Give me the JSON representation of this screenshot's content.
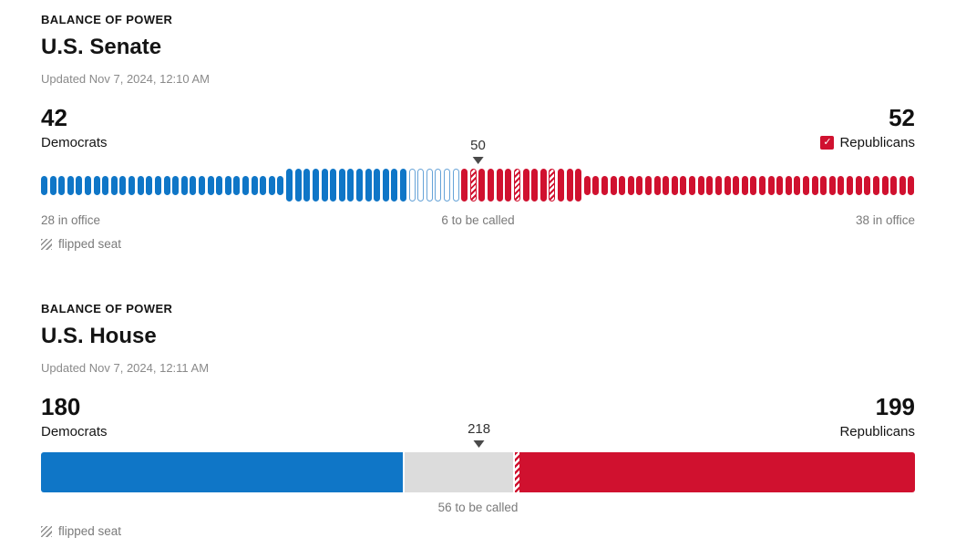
{
  "colors": {
    "democrat_blue": "#0f76c7",
    "republican_red": "#d0112f",
    "uncalled_gray": "#dcdcdc",
    "note_text_gray": "#7a7a7a",
    "marker_gray": "#4a4a4a"
  },
  "senate": {
    "kicker": "BALANCE OF POWER",
    "title": "U.S. Senate",
    "updated": "Updated Nov 7, 2024, 12:10 AM",
    "democrats": {
      "total": "42",
      "label": "Democrats"
    },
    "republicans": {
      "total": "52",
      "label": "Republicans",
      "winner": true,
      "check_icon": "✓"
    },
    "majority_label": "50",
    "notes": {
      "left": "28 in office",
      "center": "6 to be called",
      "right": "38 in office"
    },
    "legend": "flipped seat"
  },
  "house": {
    "kicker": "BALANCE OF POWER",
    "title": "U.S. House",
    "updated": "Updated Nov 7, 2024, 12:11 AM",
    "democrats": {
      "total": "180",
      "label": "Democrats"
    },
    "republicans": {
      "total": "199",
      "label": "Republicans",
      "winner": false
    },
    "majority_label": "218",
    "notes": {
      "center": "56 to be called"
    },
    "legend": "flipped seat"
  },
  "chart_data": [
    {
      "type": "seat-chart",
      "title": "U.S. Senate balance of power",
      "total_seats": 100,
      "majority": 50,
      "democrats": 42,
      "republicans": 52,
      "uncalled": 6,
      "dem_in_office": 28,
      "rep_in_office": 38,
      "dem_elected": 14,
      "rep_elected": 14,
      "groups": [
        {
          "class": "dem-office",
          "count": 28
        },
        {
          "class": "dem-elected",
          "count": 14
        },
        {
          "class": "uncalled",
          "count": 6
        },
        {
          "class": "rep-elected",
          "count": 14,
          "flipped": [
            1,
            6,
            10
          ]
        },
        {
          "class": "rep-office",
          "count": 38
        }
      ]
    },
    {
      "type": "stacked-bar",
      "title": "U.S. House balance of power",
      "total_seats": 435,
      "majority": 218,
      "democrats": 180,
      "republicans": 199,
      "uncalled": 56,
      "segments": [
        {
          "class": "dem",
          "seats": 180
        },
        {
          "class": "uncalled",
          "seats": 56
        },
        {
          "class": "rep-flipped",
          "seats": 2
        },
        {
          "class": "rep",
          "seats": 197
        }
      ]
    }
  ]
}
